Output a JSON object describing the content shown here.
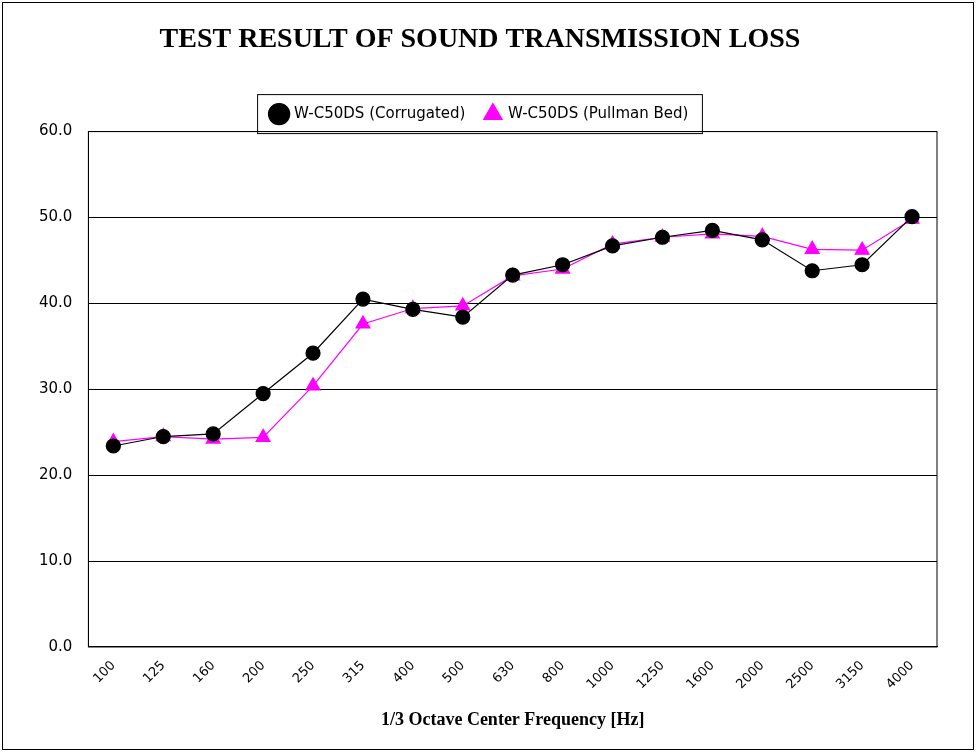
{
  "chart_data": {
    "type": "line",
    "title": "TEST RESULT OF SOUND TRANSMISSION LOSS",
    "x_label": "1/3 Octave Center Frequency [Hz]",
    "categories": [
      "100",
      "125",
      "160",
      "200",
      "250",
      "315",
      "400",
      "500",
      "630",
      "800",
      "1000",
      "1250",
      "1600",
      "2000",
      "2500",
      "3150",
      "4000"
    ],
    "series": [
      {
        "name": "W-C50DS (Corrugated)",
        "color": "#000000",
        "marker": "circle",
        "line_style": "solid",
        "values": [
          23.4,
          24.5,
          24.8,
          29.5,
          34.2,
          40.5,
          39.3,
          38.4,
          43.3,
          44.5,
          46.7,
          47.7,
          48.5,
          47.4,
          43.8,
          44.5,
          50.1
        ]
      },
      {
        "name": "W-C50DS (Pullman Bed)",
        "color": "#ff00ff",
        "marker": "triangle",
        "line_style": "solid",
        "values": [
          23.9,
          24.5,
          24.2,
          24.4,
          30.4,
          37.6,
          39.4,
          39.7,
          43.2,
          44.0,
          46.9,
          47.7,
          48.1,
          47.8,
          46.3,
          46.2,
          49.8
        ]
      }
    ],
    "ylim": [
      0,
      60
    ],
    "yticks": [
      {
        "value": 0,
        "label": "0.0"
      },
      {
        "value": 10,
        "label": "10.0"
      },
      {
        "value": 20,
        "label": "20.0"
      },
      {
        "value": 30,
        "label": "30.0"
      },
      {
        "value": 40,
        "label": "40.0"
      },
      {
        "value": 50,
        "label": "50.0"
      },
      {
        "value": 60,
        "label": "60.0"
      }
    ],
    "grid": true,
    "legend": "top"
  }
}
